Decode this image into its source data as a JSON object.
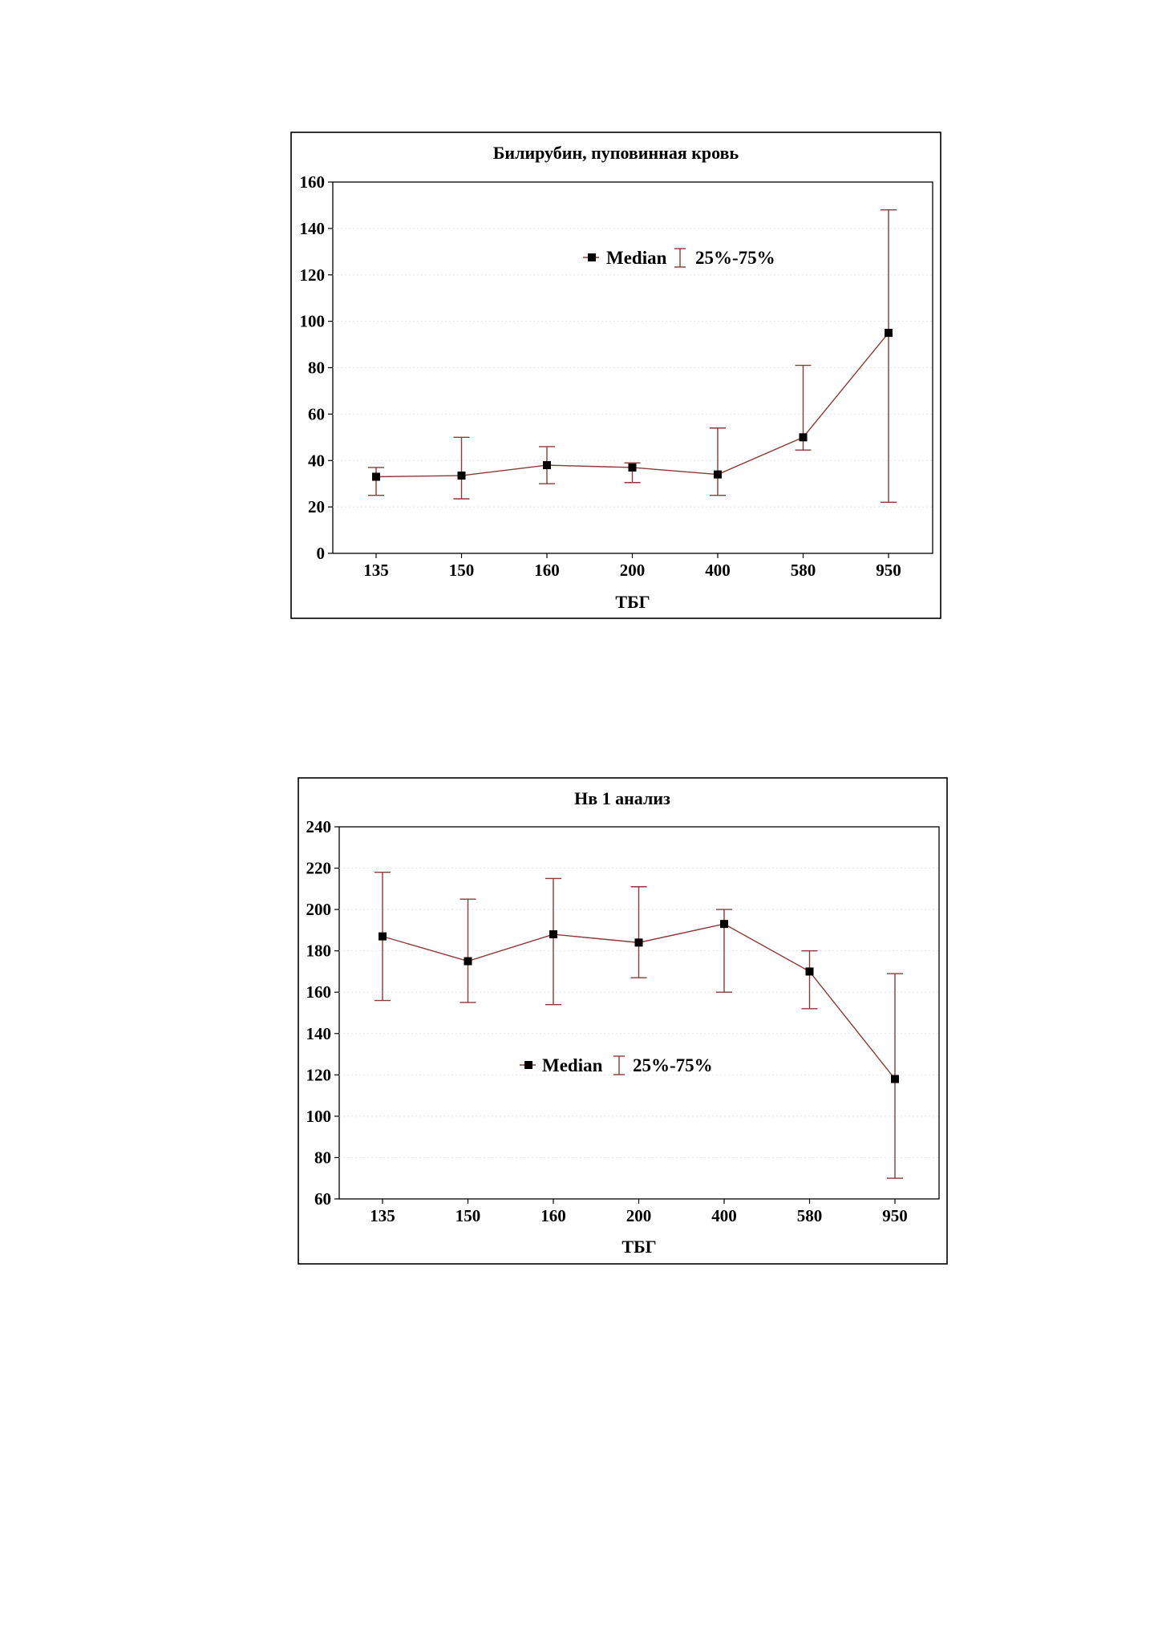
{
  "colors": {
    "series_line": "#8b3a3a",
    "marker": "#000000",
    "frame": "#000000",
    "grid": "#e8e8e8"
  },
  "chart_data": [
    {
      "type": "line",
      "title": "Билирубин, пуповинная кровь",
      "xlabel": "ТБГ",
      "ylabel": "",
      "categories": [
        "135",
        "150",
        "160",
        "200",
        "400",
        "580",
        "950"
      ],
      "ylim": [
        0,
        160
      ],
      "yticks": [
        0,
        20,
        40,
        60,
        80,
        100,
        120,
        140,
        160
      ],
      "grid": true,
      "legend_position": "top-center",
      "legend": {
        "median_label": "Median",
        "range_label": "25%-75%"
      },
      "series": [
        {
          "name": "Median",
          "values": [
            33,
            33.5,
            38,
            37,
            34,
            50,
            95
          ],
          "q25": [
            25,
            23.5,
            30,
            30.5,
            25,
            44.5,
            22
          ],
          "q75": [
            37,
            50,
            46,
            39,
            54,
            81,
            148
          ]
        }
      ]
    },
    {
      "type": "line",
      "title": "Нв 1 анализ",
      "xlabel": "ТБГ",
      "ylabel": "",
      "categories": [
        "135",
        "150",
        "160",
        "200",
        "400",
        "580",
        "950"
      ],
      "ylim": [
        60,
        240
      ],
      "yticks": [
        60,
        80,
        100,
        120,
        140,
        160,
        180,
        200,
        220,
        240
      ],
      "grid": true,
      "legend_position": "center",
      "legend": {
        "median_label": "Median",
        "range_label": "25%-75%"
      },
      "series": [
        {
          "name": "Median",
          "values": [
            187,
            175,
            188,
            184,
            193,
            170,
            118
          ],
          "q25": [
            156,
            155,
            154,
            167,
            160,
            152,
            70
          ],
          "q75": [
            218,
            205,
            215,
            211,
            200,
            180,
            169
          ]
        }
      ]
    }
  ]
}
